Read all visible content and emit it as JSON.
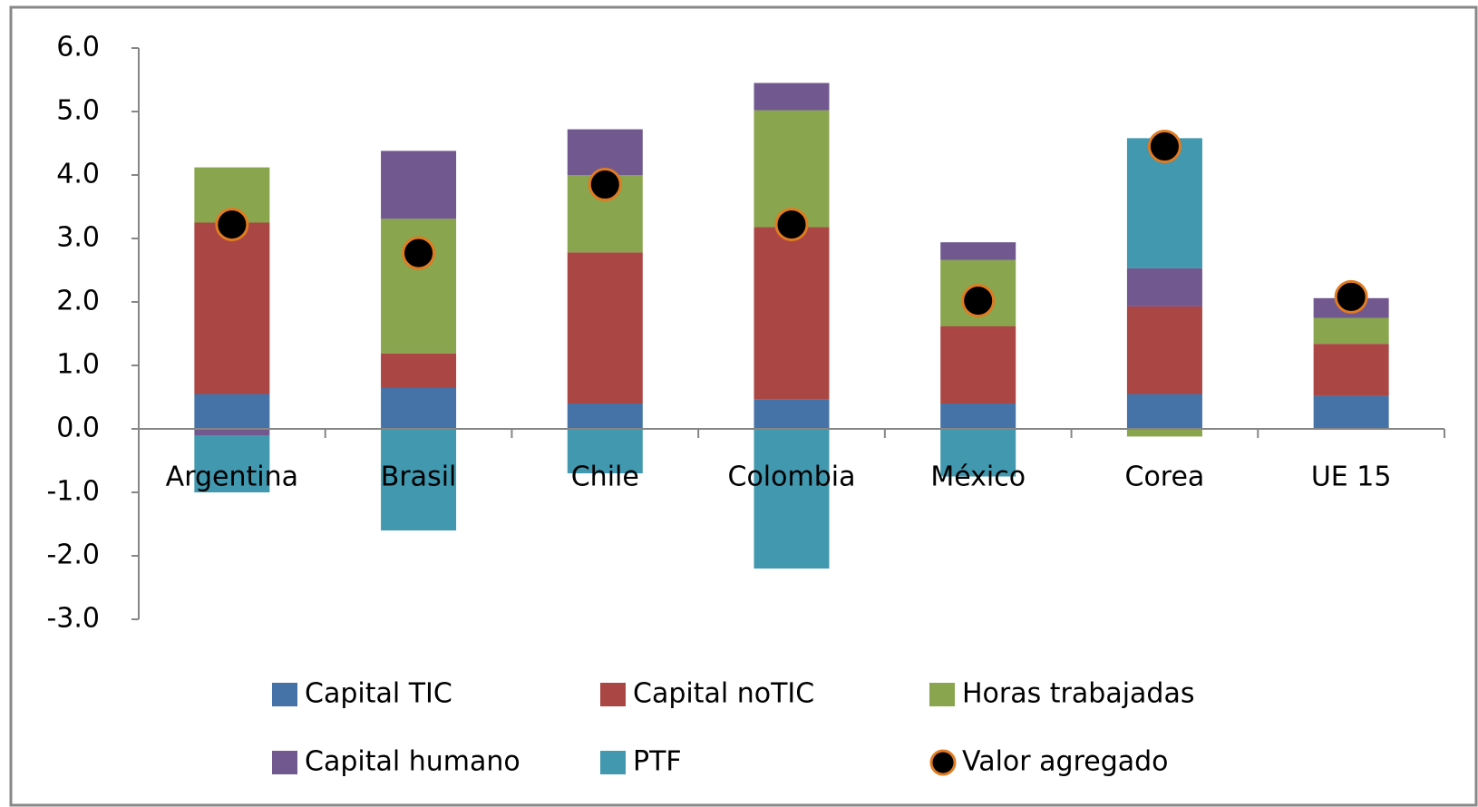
{
  "chart_data": {
    "type": "bar",
    "stacked": true,
    "categories": [
      "Argentina",
      "Brasil",
      "Chile",
      "Colombia",
      "México",
      "Corea",
      "UE 15"
    ],
    "series": [
      {
        "name": "Capital TIC",
        "color": "#4572a7",
        "values": [
          0.55,
          0.65,
          0.4,
          0.46,
          0.4,
          0.55,
          0.52
        ]
      },
      {
        "name": "Capital noTIC",
        "color": "#aa4643",
        "values": [
          2.7,
          0.54,
          2.38,
          2.72,
          1.22,
          1.38,
          0.82
        ]
      },
      {
        "name": "Horas trabajadas",
        "color": "#89a54e",
        "values": [
          0.87,
          2.12,
          1.22,
          1.84,
          1.04,
          -0.12,
          0.41
        ]
      },
      {
        "name": "Capital humano",
        "color": "#71588f",
        "values": [
          -0.1,
          1.07,
          0.72,
          0.43,
          0.28,
          0.6,
          0.31
        ]
      },
      {
        "name": "PTF",
        "color": "#4198af",
        "values": [
          -0.9,
          -1.6,
          -0.7,
          -2.2,
          -0.75,
          2.05,
          0
        ]
      },
      {
        "name": "Valor agregado",
        "type": "scatter",
        "color": "#000000",
        "edge_color": "#e07b22",
        "values": [
          3.22,
          2.77,
          3.85,
          3.22,
          2.02,
          4.45,
          2.08
        ]
      }
    ],
    "ylim": [
      -3,
      6
    ],
    "yticks": [
      {
        "value": -3,
        "label": "-3.0"
      },
      {
        "value": -2,
        "label": "-2.0"
      },
      {
        "value": -1,
        "label": "-1.0"
      },
      {
        "value": 0,
        "label": "0.0"
      },
      {
        "value": 1,
        "label": "1.0"
      },
      {
        "value": 2,
        "label": "2.0"
      },
      {
        "value": 3,
        "label": "3.0"
      },
      {
        "value": 4,
        "label": "4.0"
      },
      {
        "value": 5,
        "label": "5.0"
      },
      {
        "value": 6,
        "label": "6.0"
      }
    ],
    "grid": true,
    "legend": "bottom"
  }
}
